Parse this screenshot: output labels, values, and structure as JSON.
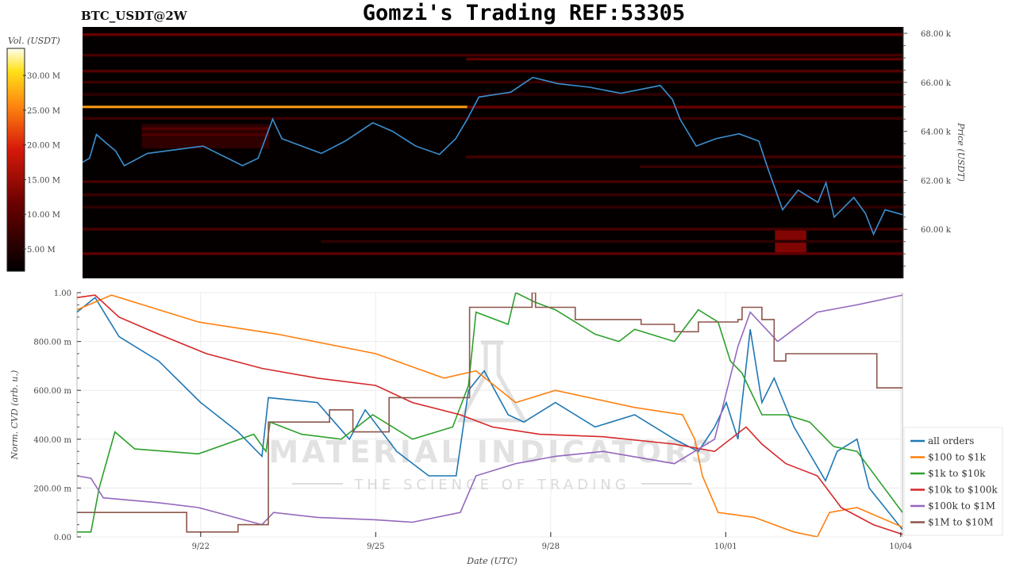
{
  "title": "Gomzi's Trading REF:53305",
  "symbol": "BTC_USDT@2W",
  "watermark": {
    "line1": "MATERIAL INDICATORS",
    "line2": "THE SCIENCE OF TRADING"
  },
  "chart_data": [
    {
      "type": "heatmap",
      "name": "orderbook-heatmap",
      "x_unit": "days since 9/20 00:00 UTC",
      "xlim": [
        -0.12,
        14.03
      ],
      "ylabel": "Price (USDT)",
      "ylim": [
        58000,
        68260
      ],
      "yticks": [
        {
          "v": 60000,
          "label": "60.00 k"
        },
        {
          "v": 62000,
          "label": "62.00 k"
        },
        {
          "v": 64000,
          "label": "64.00 k"
        },
        {
          "v": 66000,
          "label": "66.00 k"
        },
        {
          "v": 68000,
          "label": "68.00 k"
        }
      ],
      "colorbar": {
        "label": "Vol. (USDT)",
        "range": [
          1.8,
          33.9
        ],
        "unit": "M",
        "ticks": [
          {
            "v": 5,
            "label": "5.00 M"
          },
          {
            "v": 10,
            "label": "10.00 M"
          },
          {
            "v": 15,
            "label": "15.00 M"
          },
          {
            "v": 20,
            "label": "20.00 M"
          },
          {
            "v": 25,
            "label": "25.00 M"
          },
          {
            "v": 30,
            "label": "30.00 M"
          }
        ]
      },
      "bands": [
        {
          "price": 67940,
          "x0": -0.12,
          "x1": 14.03,
          "vol": 11
        },
        {
          "price": 67100,
          "x0": -0.12,
          "x1": 14.03,
          "vol": 8
        },
        {
          "price": 66940,
          "x0": 6.5,
          "x1": 14.03,
          "vol": 10
        },
        {
          "price": 66450,
          "x0": -0.12,
          "x1": 14.03,
          "vol": 9
        },
        {
          "price": 66000,
          "x0": -0.12,
          "x1": 14.03,
          "vol": 7
        },
        {
          "price": 65500,
          "x0": -0.12,
          "x1": 14.03,
          "vol": 6
        },
        {
          "price": 64980,
          "x0": -0.12,
          "x1": 6.52,
          "vol": 27
        },
        {
          "price": 64980,
          "x0": 6.52,
          "x1": 14.03,
          "vol": 11
        },
        {
          "price": 64520,
          "x0": -0.12,
          "x1": 14.03,
          "vol": 7
        },
        {
          "price": 64100,
          "x0": 0.9,
          "x1": 3.1,
          "vol": 9
        },
        {
          "price": 63850,
          "x0": 0.9,
          "x1": 3.1,
          "vol": 9
        },
        {
          "price": 62950,
          "x0": 6.5,
          "x1": 14.03,
          "vol": 8
        },
        {
          "price": 62550,
          "x0": 9.5,
          "x1": 14.03,
          "vol": 7
        },
        {
          "price": 61940,
          "x0": -0.12,
          "x1": 14.03,
          "vol": 8
        },
        {
          "price": 61400,
          "x0": -0.12,
          "x1": 14.03,
          "vol": 7
        },
        {
          "price": 60900,
          "x0": -0.12,
          "x1": 14.03,
          "vol": 6
        },
        {
          "price": 60000,
          "x0": -0.12,
          "x1": 14.03,
          "vol": 8
        },
        {
          "price": 59500,
          "x0": 4.0,
          "x1": 14.03,
          "vol": 6
        },
        {
          "price": 59000,
          "x0": -0.12,
          "x1": 14.03,
          "vol": 10
        }
      ],
      "patches": [
        {
          "p0": 59000,
          "p1": 60000,
          "x0": 11.83,
          "x1": 12.37,
          "vol": 13
        },
        {
          "p0": 63300,
          "p1": 64300,
          "x0": 0.9,
          "x1": 3.1,
          "vol": 6
        }
      ],
      "price_series": {
        "name": "price",
        "color": "#3a8fd0",
        "x": [
          -0.12,
          0.0,
          0.12,
          0.3,
          0.45,
          0.6,
          1.0,
          1.96,
          2.64,
          2.91,
          3.16,
          3.32,
          4.0,
          4.41,
          4.89,
          5.23,
          5.63,
          6.04,
          6.32,
          6.52,
          6.72,
          7.27,
          7.65,
          8.08,
          8.63,
          9.17,
          9.85,
          10.06,
          10.19,
          10.47,
          10.81,
          11.21,
          11.55,
          11.69,
          11.96,
          12.23,
          12.57,
          12.71,
          12.85,
          13.19,
          13.39,
          13.53,
          13.73,
          14.03
        ],
        "y": [
          62740,
          62900,
          63870,
          63500,
          63200,
          62600,
          63100,
          63400,
          62600,
          62900,
          64500,
          63700,
          63100,
          63600,
          64350,
          64000,
          63400,
          63060,
          63700,
          64500,
          65400,
          65600,
          66200,
          65950,
          65800,
          65550,
          65870,
          65300,
          64500,
          63400,
          63700,
          63900,
          63600,
          62600,
          60800,
          61600,
          61100,
          61900,
          60500,
          61300,
          60650,
          59800,
          60800,
          60600
        ]
      }
    },
    {
      "type": "line",
      "name": "cvd-chart",
      "xlabel": "Date (UTC)",
      "ylabel": "Norm. CVD (arb. u.)",
      "xlim": [
        -0.12,
        14.03
      ],
      "ylim": [
        0,
        1
      ],
      "xticks": [
        {
          "v": 2,
          "label": "9/22"
        },
        {
          "v": 5,
          "label": "9/25"
        },
        {
          "v": 8,
          "label": "9/28"
        },
        {
          "v": 11,
          "label": "10/01"
        },
        {
          "v": 14,
          "label": "10/04"
        }
      ],
      "yticks": [
        {
          "v": 0,
          "label": "0.00"
        },
        {
          "v": 0.2,
          "label": "200.00 m"
        },
        {
          "v": 0.4,
          "label": "400.00 m"
        },
        {
          "v": 0.6,
          "label": "600.00 m"
        },
        {
          "v": 0.8,
          "label": "800.00 m"
        },
        {
          "v": 1,
          "label": "1.00"
        }
      ],
      "grid": true,
      "legend_position": "right",
      "series": [
        {
          "name": "all orders",
          "color": "#1f77b4",
          "x": [
            -0.12,
            0.19,
            0.6,
            1.28,
            2.0,
            2.64,
            3.05,
            3.16,
            4.0,
            4.55,
            4.82,
            5.36,
            5.91,
            6.38,
            6.59,
            6.86,
            7.27,
            7.54,
            8.08,
            8.76,
            9.44,
            10.12,
            10.53,
            10.81,
            11.01,
            11.21,
            11.42,
            11.62,
            11.83,
            12.17,
            12.71,
            12.91,
            13.25,
            13.46,
            14.03
          ],
          "y": [
            0.92,
            0.98,
            0.82,
            0.72,
            0.55,
            0.43,
            0.33,
            0.57,
            0.55,
            0.4,
            0.52,
            0.35,
            0.25,
            0.25,
            0.6,
            0.68,
            0.5,
            0.47,
            0.55,
            0.45,
            0.5,
            0.4,
            0.35,
            0.45,
            0.55,
            0.4,
            0.85,
            0.55,
            0.65,
            0.45,
            0.23,
            0.35,
            0.4,
            0.2,
            0.03
          ]
        },
        {
          "name": "$100 to $1k",
          "color": "#ff7f0e",
          "x": [
            -0.12,
            0.47,
            1.96,
            3.32,
            5.0,
            6.17,
            6.72,
            7.4,
            8.08,
            9.44,
            10.26,
            10.47,
            10.6,
            10.87,
            11.49,
            12.17,
            12.57,
            12.78,
            13.25,
            14.03
          ],
          "y": [
            0.93,
            0.99,
            0.88,
            0.83,
            0.75,
            0.65,
            0.68,
            0.55,
            0.6,
            0.53,
            0.5,
            0.4,
            0.25,
            0.1,
            0.08,
            0.02,
            0.0,
            0.1,
            0.12,
            0.04
          ]
        },
        {
          "name": "$1k to $10k",
          "color": "#2ca02c",
          "x": [
            -0.12,
            0.12,
            0.26,
            0.53,
            0.87,
            1.96,
            2.91,
            3.12,
            3.19,
            3.73,
            4.41,
            4.95,
            5.63,
            6.32,
            6.59,
            6.72,
            7.27,
            7.4,
            7.74,
            8.08,
            8.76,
            9.17,
            9.44,
            10.12,
            10.53,
            10.87,
            11.08,
            11.28,
            11.62,
            12.03,
            12.44,
            12.85,
            13.25,
            14.03
          ],
          "y": [
            0.02,
            0.02,
            0.2,
            0.43,
            0.36,
            0.34,
            0.42,
            0.35,
            0.47,
            0.42,
            0.4,
            0.5,
            0.4,
            0.45,
            0.62,
            0.92,
            0.87,
            1.0,
            0.96,
            0.93,
            0.83,
            0.8,
            0.85,
            0.8,
            0.93,
            0.88,
            0.72,
            0.67,
            0.5,
            0.5,
            0.47,
            0.37,
            0.35,
            0.1
          ]
        },
        {
          "name": "$10k to $100k",
          "color": "#d62728",
          "x": [
            -0.12,
            0.19,
            0.6,
            1.28,
            2.1,
            3.05,
            4.0,
            5.0,
            5.63,
            6.45,
            7.0,
            7.81,
            8.9,
            10.12,
            10.81,
            11.35,
            11.62,
            12.03,
            12.57,
            12.98,
            13.53,
            14.03
          ],
          "y": [
            0.98,
            0.99,
            0.9,
            0.83,
            0.75,
            0.69,
            0.65,
            0.62,
            0.55,
            0.5,
            0.45,
            0.42,
            0.41,
            0.38,
            0.35,
            0.45,
            0.38,
            0.3,
            0.25,
            0.12,
            0.05,
            0.01
          ]
        },
        {
          "name": "$100k to $1M",
          "color": "#9467bd",
          "x": [
            -0.12,
            0.12,
            0.33,
            1.28,
            1.96,
            3.05,
            3.25,
            4.0,
            5.0,
            5.63,
            6.45,
            6.72,
            7.4,
            8.08,
            8.9,
            10.12,
            10.81,
            11.21,
            11.42,
            11.89,
            12.17,
            12.57,
            13.25,
            14.03
          ],
          "y": [
            0.25,
            0.24,
            0.16,
            0.14,
            0.12,
            0.05,
            0.1,
            0.08,
            0.07,
            0.06,
            0.1,
            0.25,
            0.3,
            0.33,
            0.35,
            0.3,
            0.4,
            0.78,
            0.92,
            0.8,
            0.85,
            0.92,
            0.95,
            0.99
          ]
        },
        {
          "name": "$1M to $10M",
          "color": "#8c564b",
          "step": true,
          "x": [
            -0.12,
            1.69,
            1.76,
            2.51,
            2.64,
            3.16,
            4.21,
            4.61,
            5.23,
            6.61,
            7.68,
            7.74,
            7.78,
            8.42,
            8.49,
            9.55,
            10.06,
            10.12,
            10.53,
            11.21,
            11.28,
            11.62,
            11.83,
            12.03,
            13.53,
            13.59,
            14.03
          ],
          "y": [
            0.1,
            0.1,
            0.02,
            0.02,
            0.05,
            0.47,
            0.52,
            0.43,
            0.57,
            0.94,
            1.0,
            0.94,
            0.94,
            0.89,
            0.89,
            0.87,
            0.87,
            0.84,
            0.88,
            0.89,
            0.94,
            0.89,
            0.72,
            0.75,
            0.75,
            0.61,
            0.61
          ]
        }
      ]
    }
  ]
}
